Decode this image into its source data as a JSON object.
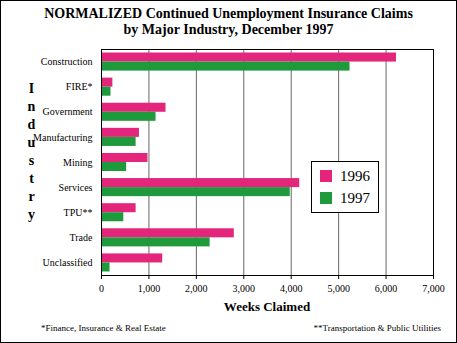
{
  "chart_data": {
    "type": "bar",
    "orientation": "horizontal",
    "title": "NORMALIZED Continued Unemployment Insurance Claims",
    "subtitle": "by Major Industry, December 1997",
    "x_label": "Weeks Claimed",
    "y_label": "Industry",
    "categories": [
      "Construction",
      "FIRE*",
      "Government",
      "Manufacturing",
      "Mining",
      "Services",
      "TPU**",
      "Trade",
      "Unclassified"
    ],
    "series": [
      {
        "name": "1996",
        "color": "#e3257b",
        "values": [
          6220,
          240,
          1360,
          800,
          980,
          4180,
          730,
          2800,
          1290
        ]
      },
      {
        "name": "1997",
        "color": "#1e9a3c",
        "values": [
          5240,
          200,
          1150,
          730,
          530,
          3980,
          470,
          2290,
          180
        ]
      }
    ],
    "xlim": [
      0,
      7000
    ],
    "xticks": [
      0,
      {
        "value": 1000,
        "label": "1,000"
      },
      {
        "value": 2000,
        "label": "2,000"
      },
      {
        "value": 3000,
        "label": "3,000"
      },
      {
        "value": 4000,
        "label": "4,000"
      },
      {
        "value": 5000,
        "label": "5,000"
      },
      {
        "value": 6000,
        "label": "6,000"
      },
      {
        "value": 7000,
        "label": "7,000"
      }
    ],
    "grid": true,
    "legend": "right",
    "annotations": [
      "*Finance, Insurance & Real Estate",
      "**Transportation & Public Utilities"
    ]
  }
}
